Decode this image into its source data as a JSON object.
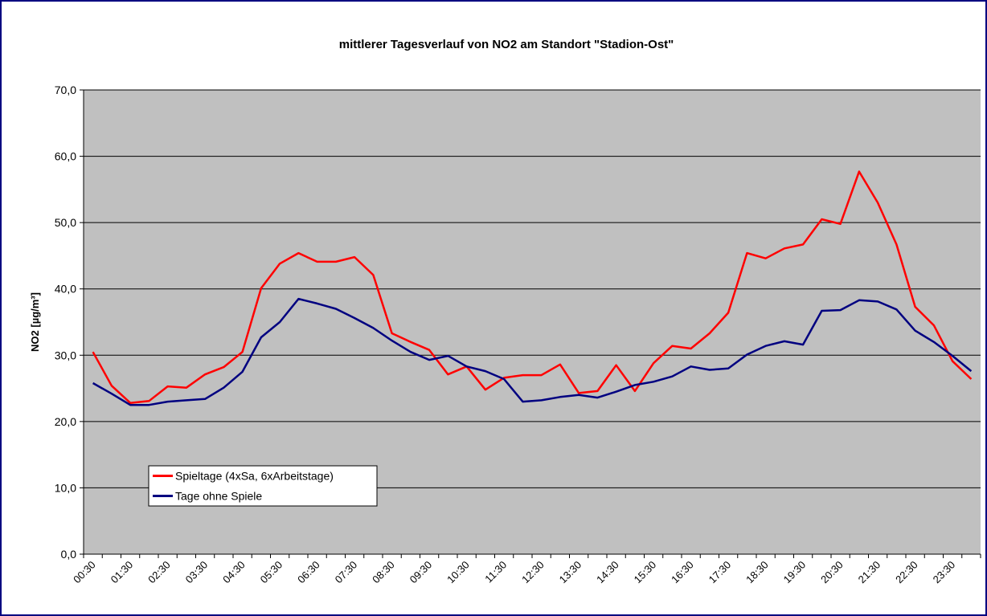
{
  "chart_data": {
    "type": "line",
    "title": "mittlerer Tagesverlauf von NO2 am Standort \"Stadion-Ost\"",
    "y_label": "NO2 [µg/m³]",
    "categories": [
      "00:30",
      null,
      "01:30",
      null,
      "02:30",
      null,
      "03:30",
      null,
      "04:30",
      null,
      "05:30",
      null,
      "06:30",
      null,
      "07:30",
      null,
      "08:30",
      null,
      "09:30",
      null,
      "10:30",
      null,
      "11:30",
      null,
      "12:30",
      null,
      "13:30",
      null,
      "14:30",
      null,
      "15:30",
      null,
      "16:30",
      null,
      "17:30",
      null,
      "18:30",
      null,
      "19:30",
      null,
      "20:30",
      null,
      "21:30",
      null,
      "22:30",
      null,
      "23:30",
      null
    ],
    "series": [
      {
        "name": "Spieltage (4xSa, 6xArbeitstage)",
        "color": "#ff0000",
        "values": [
          30.5,
          25.4,
          22.8,
          23.1,
          25.3,
          25.1,
          27.1,
          28.2,
          30.5,
          40.1,
          43.8,
          45.4,
          44.1,
          44.1,
          44.8,
          42.1,
          33.3,
          32.0,
          30.8,
          27.1,
          28.3,
          24.8,
          26.6,
          27.0,
          27.0,
          28.6,
          24.3,
          24.6,
          28.5,
          24.6,
          28.8,
          31.4,
          31.0,
          33.3,
          36.4,
          45.4,
          44.6,
          46.1,
          46.7,
          50.5,
          49.8,
          57.7,
          53.0,
          46.7,
          37.3,
          34.5,
          29.1,
          26.4
        ]
      },
      {
        "name": "Tage ohne Spiele",
        "color": "#000080",
        "values": [
          25.8,
          24.2,
          22.5,
          22.5,
          23.0,
          23.2,
          23.4,
          25.1,
          27.5,
          32.7,
          35.0,
          38.5,
          37.8,
          37.0,
          35.6,
          34.1,
          32.2,
          30.5,
          29.3,
          29.9,
          28.3,
          27.6,
          26.4,
          23.0,
          23.2,
          23.7,
          24.0,
          23.6,
          24.5,
          25.5,
          26.0,
          26.8,
          28.3,
          27.8,
          28.0,
          30.1,
          31.4,
          32.1,
          31.6,
          36.7,
          36.8,
          38.3,
          38.1,
          36.9,
          33.7,
          32.0,
          29.9,
          27.6
        ]
      }
    ],
    "ylim": [
      0,
      70
    ],
    "yticks": [
      {
        "value": 0,
        "label": "0,0"
      },
      {
        "value": 10,
        "label": "10,0"
      },
      {
        "value": 20,
        "label": "20,0"
      },
      {
        "value": 30,
        "label": "30,0"
      },
      {
        "value": 40,
        "label": "40,0"
      },
      {
        "value": 50,
        "label": "50,0"
      },
      {
        "value": 60,
        "label": "60,0"
      },
      {
        "value": 70,
        "label": "70,0"
      }
    ],
    "grid": true,
    "legend": "lower left"
  }
}
